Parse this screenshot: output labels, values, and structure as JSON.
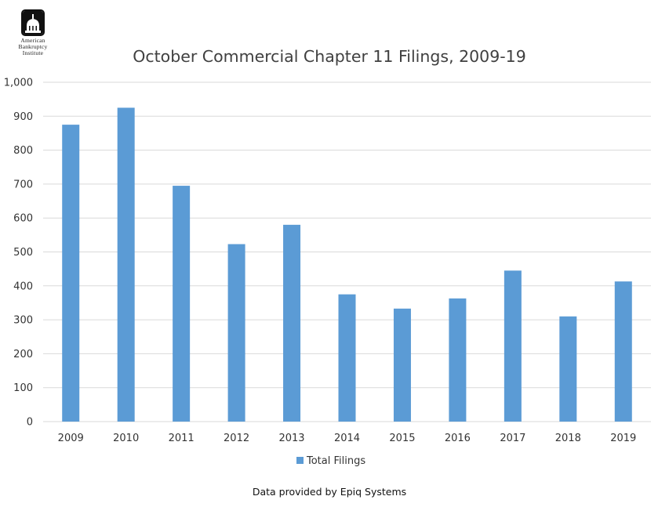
{
  "logo": {
    "lines": [
      "American",
      "Bankruptcy",
      "Institute"
    ]
  },
  "chart_data": {
    "type": "bar",
    "title": "October Commercial Chapter 11 Filings, 2009-19",
    "categories": [
      "2009",
      "2010",
      "2011",
      "2012",
      "2013",
      "2014",
      "2015",
      "2016",
      "2017",
      "2018",
      "2019"
    ],
    "series": [
      {
        "name": "Total Filings",
        "values": [
          875,
          925,
          695,
          523,
          580,
          375,
          333,
          363,
          445,
          310,
          413
        ]
      }
    ],
    "ylim": [
      0,
      1000
    ],
    "yticks": [
      0,
      100,
      200,
      300,
      400,
      500,
      600,
      700,
      800,
      900,
      1000
    ],
    "ytick_labels": [
      "0",
      "100",
      "200",
      "300",
      "400",
      "500",
      "600",
      "700",
      "800",
      "900",
      "1,000"
    ],
    "xlabel": "",
    "ylabel": "",
    "grid": true,
    "legend": "bottom-center",
    "bar_color": "#5b9bd5",
    "grid_color": "#d9d9d9"
  },
  "footer": {
    "source": "Data provided by Epiq Systems"
  }
}
